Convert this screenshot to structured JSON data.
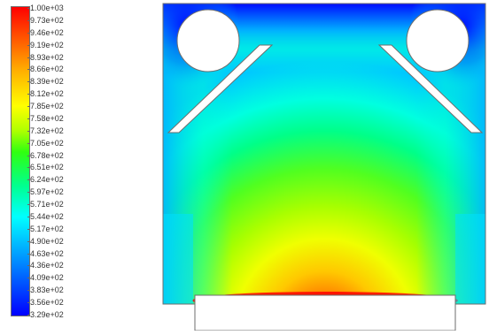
{
  "legend": {
    "labels": [
      "1.00e+03",
      "9.73e+02",
      "9.46e+02",
      "9.19e+02",
      "8.93e+02",
      "8.66e+02",
      "8.39e+02",
      "8.12e+02",
      "7.85e+02",
      "7.58e+02",
      "7.32e+02",
      "7.05e+02",
      "6.78e+02",
      "6.51e+02",
      "6.24e+02",
      "5.97e+02",
      "5.71e+02",
      "5.44e+02",
      "5.17e+02",
      "4.90e+02",
      "4.63e+02",
      "4.36e+02",
      "4.09e+02",
      "3.83e+02",
      "3.56e+02",
      "3.29e+02"
    ],
    "max": 1000,
    "min": 329
  },
  "colors": {
    "hot": "#ff0000",
    "warm": "#ffff00",
    "mid": "#30ff10",
    "cool": "#00ffff",
    "cold": "#0000ff",
    "outline": "#6e6e6e"
  }
}
